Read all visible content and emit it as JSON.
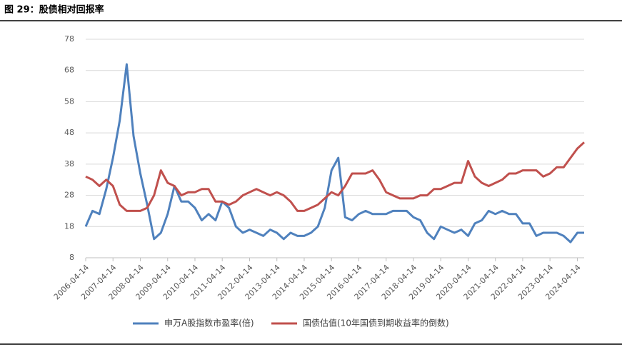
{
  "chart_data": {
    "type": "line",
    "title": "图 29：股债相对回报率",
    "x": [
      "2006-04-14",
      "2006-07-14",
      "2006-10-14",
      "2007-01-14",
      "2007-04-14",
      "2007-07-14",
      "2007-10-14",
      "2008-01-14",
      "2008-04-14",
      "2008-07-14",
      "2008-10-14",
      "2009-01-14",
      "2009-04-14",
      "2009-07-14",
      "2009-10-14",
      "2010-01-14",
      "2010-04-14",
      "2010-07-14",
      "2010-10-14",
      "2011-01-14",
      "2011-04-14",
      "2011-07-14",
      "2011-10-14",
      "2012-01-14",
      "2012-04-14",
      "2012-07-14",
      "2012-10-14",
      "2013-01-14",
      "2013-04-14",
      "2013-07-14",
      "2013-10-14",
      "2014-01-14",
      "2014-04-14",
      "2014-07-14",
      "2014-10-14",
      "2015-01-14",
      "2015-04-14",
      "2015-07-14",
      "2015-10-14",
      "2016-01-14",
      "2016-04-14",
      "2016-07-14",
      "2016-10-14",
      "2017-01-14",
      "2017-04-14",
      "2017-07-14",
      "2017-10-14",
      "2018-01-14",
      "2018-04-14",
      "2018-07-14",
      "2018-10-14",
      "2019-01-14",
      "2019-04-14",
      "2019-07-14",
      "2019-10-14",
      "2020-01-14",
      "2020-04-14",
      "2020-07-14",
      "2020-10-14",
      "2021-01-14",
      "2021-04-14",
      "2021-07-14",
      "2021-10-14",
      "2022-01-14",
      "2022-04-14",
      "2022-07-14",
      "2022-10-14",
      "2023-01-14",
      "2023-04-14",
      "2023-07-14",
      "2023-10-14",
      "2024-01-14",
      "2024-04-14",
      "2024-07-14"
    ],
    "series": [
      {
        "name": "申万A股指数市盈率(倍)",
        "color": "#4f81bd",
        "values": [
          18,
          23,
          22,
          30,
          40,
          52,
          70,
          47,
          35,
          25,
          14,
          16,
          22,
          31,
          26,
          26,
          24,
          20,
          22,
          20,
          26,
          24,
          18,
          16,
          17,
          16,
          15,
          17,
          16,
          14,
          16,
          15,
          15,
          16,
          18,
          24,
          36,
          40,
          21,
          20,
          22,
          23,
          22,
          22,
          22,
          23,
          23,
          23,
          21,
          20,
          16,
          14,
          18,
          17,
          16,
          17,
          15,
          19,
          20,
          23,
          22,
          23,
          22,
          22,
          19,
          19,
          15,
          16,
          16,
          16,
          15,
          13,
          16,
          16
        ]
      },
      {
        "name": "国债估值(10年国债到期收益率的倒数)",
        "color": "#c0504d",
        "values": [
          34,
          33,
          31,
          33,
          31,
          25,
          23,
          23,
          23,
          24,
          28,
          36,
          32,
          31,
          28,
          29,
          29,
          30,
          30,
          26,
          26,
          25,
          26,
          28,
          29,
          30,
          29,
          28,
          29,
          28,
          26,
          23,
          23,
          24,
          25,
          27,
          29,
          28,
          31,
          35,
          35,
          35,
          36,
          33,
          29,
          28,
          27,
          27,
          27,
          28,
          28,
          30,
          30,
          31,
          32,
          32,
          39,
          34,
          32,
          31,
          32,
          33,
          35,
          35,
          36,
          36,
          36,
          34,
          35,
          37,
          37,
          40,
          43,
          45
        ]
      }
    ],
    "xlim": [
      "2006-04-14",
      "2024-07-14"
    ],
    "xticks": [
      "2006-04-14",
      "2007-04-14",
      "2008-04-14",
      "2009-04-14",
      "2010-04-14",
      "2011-04-14",
      "2012-04-14",
      "2013-04-14",
      "2014-04-14",
      "2015-04-14",
      "2016-04-14",
      "2017-04-14",
      "2018-04-14",
      "2019-04-14",
      "2020-04-14",
      "2021-04-14",
      "2022-04-14",
      "2023-04-14",
      "2024-04-14"
    ],
    "ylim": [
      8,
      78
    ],
    "yticks": [
      8,
      18,
      28,
      38,
      48,
      58,
      68,
      78
    ],
    "grid": true,
    "legend": "bottom"
  }
}
